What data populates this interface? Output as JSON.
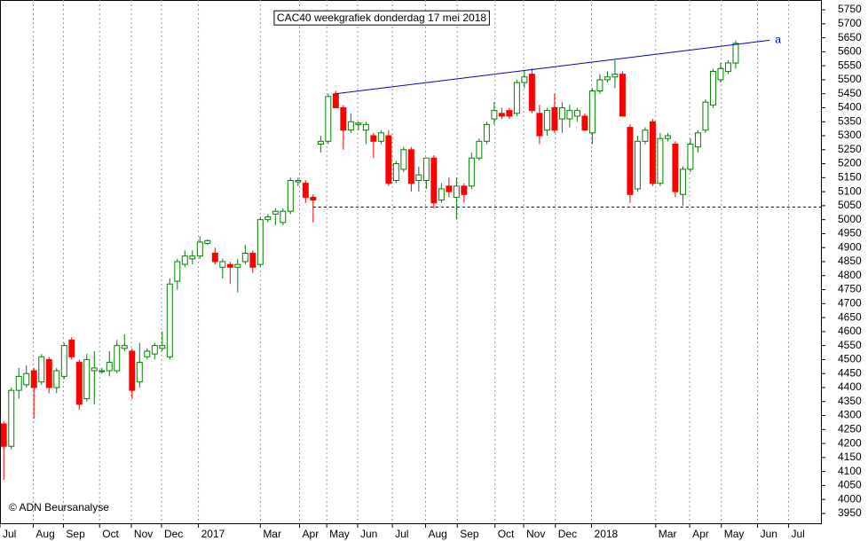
{
  "chart_data": {
    "type": "candlestick",
    "title": "CAC40 weekgrafiek donderdag 17 mei 2018",
    "copyright": "© ADN Beursanalyse",
    "up_color": "#008000",
    "down_color": "#ff0000",
    "open": [
      4270,
      4190,
      4390,
      4410,
      4460,
      4420,
      4500,
      4400,
      4440,
      4570,
      4490,
      4360,
      4460,
      4460,
      4460,
      4460,
      4540,
      4530,
      4420,
      4510,
      4520,
      4540,
      4510,
      4780,
      4840,
      4860,
      4870,
      4915,
      4880,
      4830,
      4840,
      4830,
      4850,
      4880,
      4840,
      5000,
      5020,
      4990,
      5030,
      5135,
      5130,
      5080,
      5270,
      5280,
      5450,
      5400,
      5320,
      5340,
      5320,
      5300,
      5280,
      5300,
      5140,
      5180,
      5250,
      5140,
      5140,
      5220,
      5070,
      5120,
      5080,
      5120,
      5120,
      5220,
      5280,
      5360,
      5380,
      5390,
      5380,
      5490,
      5520,
      5380,
      5320,
      5400,
      5360,
      5360,
      5370,
      5370,
      5310,
      5460,
      5500,
      5510,
      5520,
      5330,
      5110,
      5280,
      5350,
      5130,
      5290,
      5270,
      5090,
      5180,
      5260,
      5320,
      5410,
      5500,
      5530,
      5560
    ],
    "high": [
      4280,
      4400,
      4470,
      4480,
      4470,
      4520,
      4510,
      4470,
      4560,
      4580,
      4500,
      4520,
      4530,
      4470,
      4530,
      4570,
      4590,
      4540,
      4560,
      4540,
      4560,
      4600,
      4790,
      4860,
      4890,
      4890,
      4940,
      4930,
      4900,
      4860,
      4850,
      4860,
      4910,
      4890,
      5010,
      5020,
      5040,
      5040,
      5150,
      5150,
      5140,
      5090,
      5300,
      5450,
      5460,
      5410,
      5380,
      5350,
      5350,
      5310,
      5320,
      5320,
      5210,
      5260,
      5260,
      5190,
      5220,
      5230,
      5130,
      5150,
      5150,
      5130,
      5240,
      5290,
      5350,
      5420,
      5400,
      5400,
      5500,
      5530,
      5540,
      5410,
      5400,
      5450,
      5420,
      5410,
      5400,
      5380,
      5470,
      5520,
      5530,
      5570,
      5530,
      5340,
      5300,
      5330,
      5360,
      5310,
      5310,
      5280,
      5190,
      5290,
      5320,
      5430,
      5540,
      5560,
      5570,
      5640
    ],
    "low": [
      4070,
      4180,
      4360,
      4400,
      4290,
      4410,
      4380,
      4380,
      4430,
      4500,
      4320,
      4350,
      4340,
      4450,
      4440,
      4450,
      4530,
      4360,
      4400,
      4500,
      4500,
      4530,
      4500,
      4750,
      4830,
      4840,
      4860,
      4910,
      4840,
      4790,
      4770,
      4740,
      4840,
      4810,
      4830,
      4990,
      4980,
      4980,
      5020,
      5120,
      5060,
      4990,
      5240,
      5270,
      5400,
      5250,
      5310,
      5320,
      5270,
      5220,
      5270,
      5120,
      5130,
      5170,
      5100,
      5100,
      5110,
      5040,
      5060,
      5080,
      5000,
      5060,
      5110,
      5210,
      5270,
      5340,
      5360,
      5360,
      5370,
      5470,
      5380,
      5270,
      5300,
      5310,
      5310,
      5330,
      5350,
      5320,
      5270,
      5450,
      5490,
      5470,
      5370,
      5060,
      5100,
      5270,
      5120,
      5120,
      5280,
      5080,
      5050,
      5170,
      5240,
      5310,
      5400,
      5490,
      5520,
      5540
    ],
    "close": [
      4190,
      4390,
      4440,
      4450,
      4400,
      4510,
      4400,
      4460,
      4550,
      4510,
      4340,
      4500,
      4470,
      4460,
      4490,
      4550,
      4550,
      4390,
      4490,
      4530,
      4550,
      4550,
      4770,
      4850,
      4870,
      4870,
      4920,
      4925,
      4850,
      4850,
      4830,
      4840,
      4880,
      4830,
      5000,
      5010,
      5030,
      5030,
      5140,
      5140,
      5080,
      5070,
      5280,
      5440,
      5400,
      5320,
      5350,
      5345,
      5340,
      5280,
      5310,
      5130,
      5200,
      5250,
      5130,
      5160,
      5220,
      5060,
      5110,
      5100,
      5120,
      5090,
      5220,
      5280,
      5340,
      5390,
      5370,
      5370,
      5490,
      5510,
      5390,
      5300,
      5390,
      5320,
      5400,
      5390,
      5390,
      5320,
      5460,
      5500,
      5510,
      5520,
      5370,
      5090,
      5280,
      5320,
      5130,
      5290,
      5300,
      5100,
      5180,
      5270,
      5310,
      5420,
      5530,
      5540,
      5560,
      5630
    ],
    "xlim": [
      -0.5,
      108.3
    ],
    "xticks": [
      {
        "value": -0.5,
        "label": "Jul"
      },
      {
        "value": 3.9,
        "label": "Aug"
      },
      {
        "value": 7.9,
        "label": "Sep"
      },
      {
        "value": 12.7,
        "label": "Oct"
      },
      {
        "value": 16.9,
        "label": "Nov"
      },
      {
        "value": 20.9,
        "label": "Dec"
      },
      {
        "value": 25.8,
        "label": "2017"
      },
      {
        "value": 34,
        "label": "Mar"
      },
      {
        "value": 39.2,
        "label": "Apr"
      },
      {
        "value": 42.8,
        "label": "May"
      },
      {
        "value": 46.9,
        "label": "Jun"
      },
      {
        "value": 51.5,
        "label": "Jul"
      },
      {
        "value": 55.9,
        "label": "Aug"
      },
      {
        "value": 60.1,
        "label": "Sep"
      },
      {
        "value": 65.1,
        "label": "Oct"
      },
      {
        "value": 68.9,
        "label": "Nov"
      },
      {
        "value": 73.1,
        "label": "Dec"
      },
      {
        "value": 77.9,
        "label": "2018"
      },
      {
        "value": 86.4,
        "label": "Mar"
      },
      {
        "value": 90.9,
        "label": "Apr"
      },
      {
        "value": 95.1,
        "label": "May"
      },
      {
        "value": 99.9,
        "label": "Jun"
      },
      {
        "value": 104,
        "label": "Jul"
      }
    ],
    "ylim": [
      3915,
      5785
    ],
    "yticks": [
      3950,
      4000,
      4050,
      4100,
      4150,
      4200,
      4250,
      4300,
      4350,
      4400,
      4450,
      4500,
      4550,
      4600,
      4650,
      4700,
      4750,
      4800,
      4850,
      4900,
      4950,
      5000,
      5050,
      5100,
      5150,
      5200,
      5250,
      5300,
      5350,
      5400,
      5450,
      5500,
      5550,
      5600,
      5650,
      5700,
      5750
    ],
    "annotations": [
      {
        "type": "trendline",
        "x": [
          44,
          101.5
        ],
        "y": [
          5450,
          5641
        ],
        "label": "a",
        "color": "#0000cc"
      },
      {
        "type": "support",
        "x": [
          41,
          108.3
        ],
        "y": [
          5045,
          5045
        ],
        "color": "#000000"
      }
    ]
  }
}
